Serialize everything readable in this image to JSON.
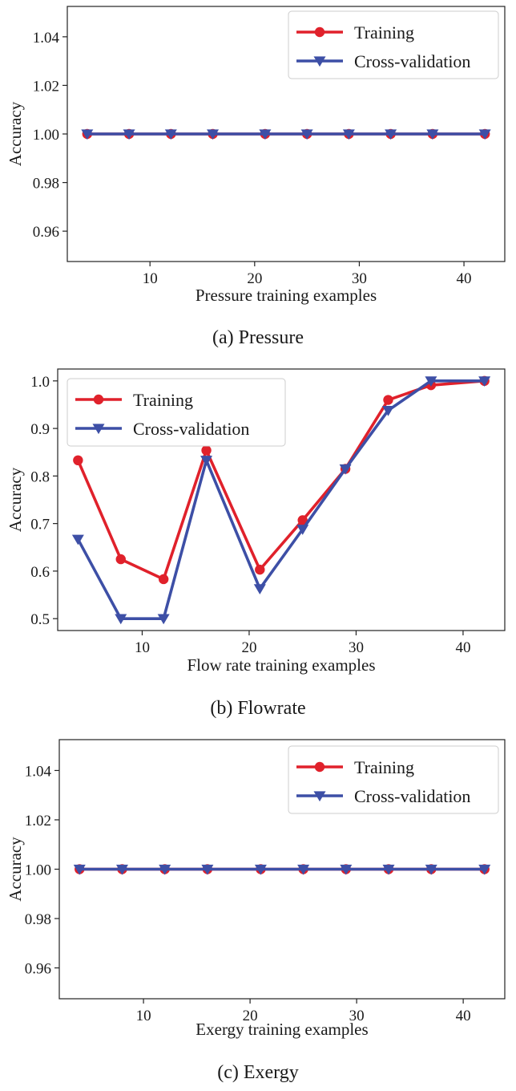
{
  "colors": {
    "training": "#e0212b",
    "cross_validation": "#3d4fa6"
  },
  "chart_data": [
    {
      "type": "line",
      "caption": "(a) Pressure",
      "xlabel": "Pressure training examples",
      "ylabel": "Accuracy",
      "xlim": [
        2.1,
        43.9
      ],
      "ylim": [
        0.9475,
        1.0525
      ],
      "xticks": [
        10,
        20,
        30,
        40
      ],
      "yticks": [
        0.96,
        0.98,
        1.0,
        1.02,
        1.04
      ],
      "ytick_labels": [
        "0.96",
        "0.98",
        "1.00",
        "1.02",
        "1.04"
      ],
      "x": [
        4,
        8,
        12,
        16,
        21,
        25,
        29,
        33,
        37,
        42
      ],
      "series": [
        {
          "name": "Training",
          "marker": "circle",
          "color": "#e0212b",
          "values": [
            1.0,
            1.0,
            1.0,
            1.0,
            1.0,
            1.0,
            1.0,
            1.0,
            1.0,
            1.0
          ]
        },
        {
          "name": "Cross-validation",
          "marker": "triangle-down",
          "color": "#3d4fa6",
          "values": [
            1.0,
            1.0,
            1.0,
            1.0,
            1.0,
            1.0,
            1.0,
            1.0,
            1.0,
            1.0
          ]
        }
      ],
      "legend": "top-right",
      "grid": false
    },
    {
      "type": "line",
      "caption": "(b) Flowrate",
      "xlabel": "Flow rate training examples",
      "ylabel": "Accuracy",
      "xlim": [
        2.1,
        43.9
      ],
      "ylim": [
        0.475,
        1.025
      ],
      "xticks": [
        10,
        20,
        30,
        40
      ],
      "yticks": [
        0.5,
        0.6,
        0.7,
        0.8,
        0.9,
        1.0
      ],
      "ytick_labels": [
        "0.5",
        "0.6",
        "0.7",
        "0.8",
        "0.9",
        "1.0"
      ],
      "x": [
        4,
        8,
        12,
        16,
        21,
        25,
        29,
        33,
        37,
        42
      ],
      "series": [
        {
          "name": "Training",
          "marker": "circle",
          "color": "#e0212b",
          "values": [
            0.833,
            0.625,
            0.583,
            0.854,
            0.603,
            0.707,
            0.815,
            0.96,
            0.991,
            1.0
          ]
        },
        {
          "name": "Cross-validation",
          "marker": "triangle-down",
          "color": "#3d4fa6",
          "values": [
            0.667,
            0.5,
            0.5,
            0.833,
            0.563,
            0.688,
            0.815,
            0.938,
            1.0,
            1.0
          ]
        }
      ],
      "legend": "top-left",
      "grid": false
    },
    {
      "type": "line",
      "caption": "(c) Exergy",
      "xlabel": "Exergy training examples",
      "ylabel": "Accuracy",
      "xlim": [
        2.1,
        43.9
      ],
      "ylim": [
        0.9475,
        1.0525
      ],
      "xticks": [
        10,
        20,
        30,
        40
      ],
      "yticks": [
        0.96,
        0.98,
        1.0,
        1.02,
        1.04
      ],
      "ytick_labels": [
        "0.96",
        "0.98",
        "1.00",
        "1.02",
        "1.04"
      ],
      "x": [
        4,
        8,
        12,
        16,
        21,
        25,
        29,
        33,
        37,
        42
      ],
      "series": [
        {
          "name": "Training",
          "marker": "circle",
          "color": "#e0212b",
          "values": [
            1.0,
            1.0,
            1.0,
            1.0,
            1.0,
            1.0,
            1.0,
            1.0,
            1.0,
            1.0
          ]
        },
        {
          "name": "Cross-validation",
          "marker": "triangle-down",
          "color": "#3d4fa6",
          "values": [
            1.0,
            1.0,
            1.0,
            1.0,
            1.0,
            1.0,
            1.0,
            1.0,
            1.0,
            1.0
          ]
        }
      ],
      "legend": "top-right",
      "grid": false
    }
  ]
}
